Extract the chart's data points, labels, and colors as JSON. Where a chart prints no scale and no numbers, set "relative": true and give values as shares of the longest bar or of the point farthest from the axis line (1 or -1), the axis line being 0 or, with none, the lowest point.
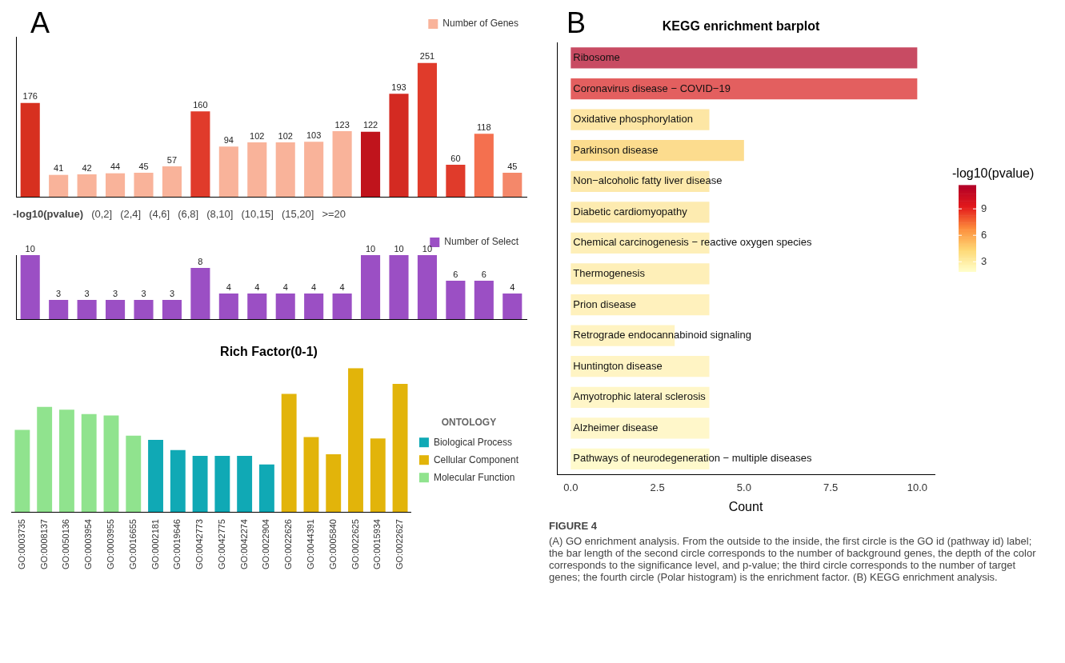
{
  "chart_data": [
    {
      "type": "bar",
      "categories": [
        null,
        null,
        null,
        null,
        null,
        null,
        null,
        null,
        null,
        null,
        null,
        null,
        null,
        null,
        null,
        null,
        null,
        null
      ],
      "series": [
        {
          "name": "Number of Genes",
          "color": "#f9b39a",
          "colors": [
            "#d7301f",
            "#f9b39a",
            "#f9b39a",
            "#f9b39a",
            "#f9b39a",
            "#f9b39a",
            "#e03b2b",
            "#f9b39a",
            "#f9b39a",
            "#f9b39a",
            "#f9b39a",
            "#f9b39a",
            "#c0141c",
            "#d42a22",
            "#e03b2b",
            "#e03b2b",
            "#f4704f",
            "#f4886a"
          ],
          "values": [
            176,
            41,
            42,
            44,
            45,
            57,
            160,
            94,
            102,
            102,
            103,
            123,
            122,
            193,
            251,
            60,
            118,
            45
          ]
        }
      ],
      "data_labels": true,
      "tick_labels": "x",
      "legend": "top right",
      "annotations": [
        "A",
        "-log10(pvalue)",
        "(0,2]",
        "(2,4]",
        "(4,6]",
        "(6,8]",
        "(8,10]",
        "(10,15]",
        "(15,20]",
        ">=20"
      ]
    },
    {
      "type": "bar",
      "categories": [
        null,
        null,
        null,
        null,
        null,
        null,
        null,
        null,
        null,
        null,
        null,
        null,
        null,
        null,
        null,
        null,
        null,
        null
      ],
      "series": [
        {
          "name": "Number of Select",
          "color": "#9b4fc4",
          "values": [
            10,
            3,
            3,
            3,
            3,
            3,
            8,
            4,
            4,
            4,
            4,
            4,
            10,
            10,
            10,
            6,
            6,
            4
          ]
        }
      ],
      "data_labels": true,
      "tick_labels": "x",
      "legend": "top right"
    },
    {
      "type": "bar",
      "title": "Rich Factor(0-1)",
      "categories": [
        "GO:0003735",
        "GO:0008137",
        "GO:0050136",
        "GO:0003954",
        "GO:0003955",
        "GO:0016655",
        "GO:0002181",
        "GO:0019646",
        "GO:0042773",
        "GO:0042775",
        "GO:0042274",
        "GO:0022904",
        "GO:0022626",
        "GO:0044391",
        "GO:0005840",
        "GO:0022625",
        "GO:0015934",
        "GO:0022627"
      ],
      "series": [
        {
          "name": "Biological Process",
          "color": "#10a9b5",
          "values": [
            null,
            null,
            null,
            null,
            null,
            null,
            0.5,
            0.43,
            0.39,
            0.39,
            0.39,
            0.33,
            null,
            null,
            null,
            null,
            null,
            null
          ]
        },
        {
          "name": "Cellular Component",
          "color": "#e2b40a",
          "values": [
            null,
            null,
            null,
            null,
            null,
            null,
            null,
            null,
            null,
            null,
            null,
            null,
            0.82,
            0.52,
            0.4,
            1,
            0.51,
            0.89
          ]
        },
        {
          "name": "Molecular Function",
          "color": "#90e38e",
          "values": [
            0.57,
            0.73,
            0.71,
            0.68,
            0.67,
            0.53,
            null,
            null,
            null,
            null,
            null,
            null,
            null,
            null,
            null,
            null,
            null,
            null
          ]
        }
      ],
      "relative": true,
      "tick_labels": "x",
      "legend": "right",
      "legend_title": "ONTOLOGY"
    },
    {
      "type": "bar",
      "orientation": "horizontal",
      "title": "KEGG enrichment barplot",
      "xlabel": "Count",
      "categories": [
        "Ribosome",
        "Coronavirus disease − COVID−19",
        "Oxidative phosphorylation",
        "Parkinson disease",
        "Non−alcoholic fatty liver disease",
        "Diabetic cardiomyopathy",
        "Chemical carcinogenesis − reactive oxygen species",
        "Thermogenesis",
        "Prion disease",
        "Retrograde endocannabinoid signaling",
        "Huntington disease",
        "Amyotrophic lateral sclerosis",
        "Alzheimer disease",
        "Pathways of neurodegeneration − multiple diseases"
      ],
      "values": [
        10,
        10,
        4,
        5,
        4,
        4,
        4,
        4,
        4,
        3,
        4,
        4,
        4,
        4
      ],
      "colors": [
        "#c84b63",
        "#e35f5f",
        "#fde6a4",
        "#fcdc8e",
        "#fde9ab",
        "#fdebb0",
        "#feefb8",
        "#feefb8",
        "#fff1bd",
        "#fff3c2",
        "#fff4c4",
        "#fff6c8",
        "#fff7ca",
        "#fffacc"
      ],
      "xlim": [
        -0.4,
        10.5
      ],
      "xticks": [
        {
          "value": 0,
          "label": "0.0"
        },
        {
          "value": 2.5,
          "label": "2.5"
        },
        {
          "value": 5,
          "label": "5.0"
        },
        {
          "value": 7.5,
          "label": "7.5"
        },
        {
          "value": 10,
          "label": "10.0"
        }
      ],
      "clabel": "-log10(pvalue)",
      "clim": [
        1.9,
        11.7
      ],
      "cticks": [
        3,
        6,
        9
      ],
      "annotations": [
        "B",
        "FIGURE 4",
        "(A) GO enrichment analysis. From the outside to the inside, the first circle is the GO id (pathway id) label; the bar length of the second circle corresponds to the number of background genes, the depth of the color corresponds to the significance level, and p-value; the third circle corresponds to the number of target genes; the fourth circle (Polar histogram) is the enrichment factor. (B) KEGG enrichment analysis."
      ]
    }
  ]
}
